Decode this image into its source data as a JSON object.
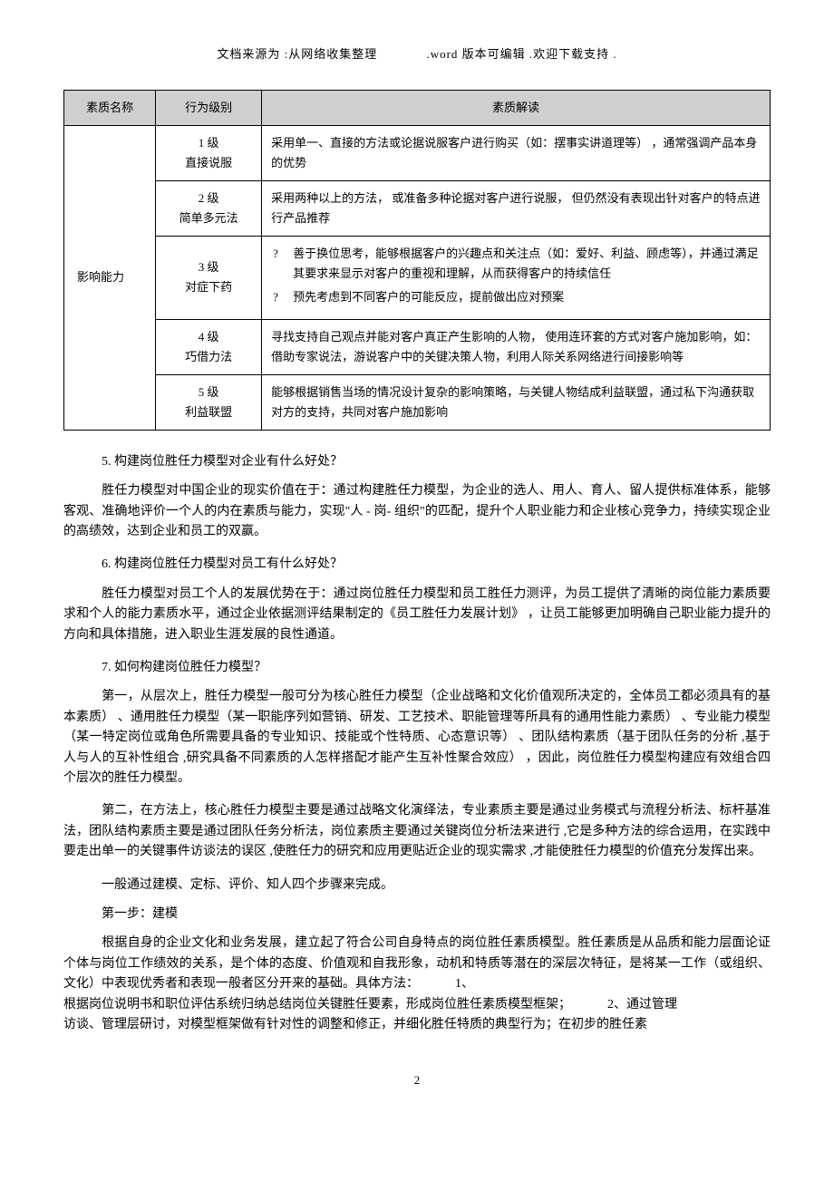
{
  "header": {
    "segment1": "文档来源为 :从网络收集整理",
    "segment2": ".word 版本可编辑  .欢迎下载支持  ."
  },
  "table": {
    "columns": [
      "素质名称",
      "行为级别",
      "素质解读"
    ],
    "col_widths": [
      "13%",
      "15%",
      "72%"
    ],
    "header_bg": "#d0cece",
    "border_color": "#000000",
    "name": "影响能力",
    "rows": [
      {
        "level_line1": "1 级",
        "level_line2": "直接说服",
        "desc_type": "text",
        "desc": "采用单一、直接的方法或论据说服客户进行购买（如：摆事实讲道理等）  ，通常强调产品本身的优势"
      },
      {
        "level_line1": "2 级",
        "level_line2": "简单多元法",
        "desc_type": "text",
        "desc": "采用两种以上的方法，  或准备多种论据对客户进行说服，  但仍然没有表现出针对客户的特点进行产品推荐"
      },
      {
        "level_line1": "3 级",
        "level_line2": "对症下药",
        "desc_type": "bullets",
        "bullets": [
          "善于换位思考，能够根据客户的兴趣点和关注点（如：爱好、利益、顾虑等），并通过满足其要求来显示对客户的重视和理解，从而获得客户的持续信任",
          "预先考虑到不同客户的可能反应，提前做出应对预案"
        ]
      },
      {
        "level_line1": "4 级",
        "level_line2": "巧借力法",
        "desc_type": "text",
        "desc": "寻找支持自己观点并能对客户真正产生影响的人物，  使用连环套的方式对客户施加影响，如：借助专家说法，游说客户中的关键决策人物，利用人际关系网络进行间接影响等"
      },
      {
        "level_line1": "5 级",
        "level_line2": "利益联盟",
        "desc_type": "text",
        "desc": "能够根据销售当场的情况设计复杂的影响策略，与关键人物结成利益联盟，通过私下沟通获取对方的支持，共同对客户施加影响"
      }
    ]
  },
  "sections": [
    {
      "heading": "5. 构建岗位胜任力模型对企业有什么好处？",
      "paragraphs": [
        "胜任力模型对中国企业的现实价值在于：通过构建胜任力模型，为企业的选人、用人、育人、留人提供标准体系，能够客观、准确地评价一个人的内在素质与能力，实现\"人 - 岗- 组织\"的匹配，提升个人职业能力和企业核心竞争力，持续实现企业的高绩效，达到企业和员工的双赢。"
      ]
    },
    {
      "heading": "6. 构建岗位胜任力模型对员工有什么好处？",
      "paragraphs": [
        "胜任力模型对员工个人的发展优势在于：通过岗位胜任力模型和员工胜任力测评，为员工提供了清晰的岗位能力素质要求和个人的能力素质水平，通过企业依据测评结果制定的《员工胜任力发展计划》  ，让员工能够更加明确自己职业能力提升的方向和具体措施，进入职业生涯发展的良性通道。"
      ]
    },
    {
      "heading": "7. 如何构建岗位胜任力模型？",
      "paragraphs": [
        "第一，从层次上，胜任力模型一般可分为核心胜任力模型（企业战略和文化价值观所决定的，全体员工都必须具有的基本素质）  、通用胜任力模型（某一职能序列如营销、研发、工艺技术、职能管理等所具有的通用性能力素质）  、专业能力模型（某一特定岗位或角色所需要具备的专业知识、技能或个性特质、心态意识等）  、团队结构素质（基于团队任务的分析 ,基于人与人的互补性组合 ,研究具备不同素质的人怎样搭配才能产生互补性聚合效应）  ，因此，岗位胜任力模型构建应有效组合四个层次的胜任力模型。",
        "第二，在方法上，核心胜任力模型主要是通过战略文化演绎法，专业素质主要是通过业务模式与流程分析法、标杆基准法，团队结构素质主要是通过团队任务分析法，岗位素质主要通过关键岗位分析法来进行 ,它是多种方法的综合运用，在实践中要走出单一的关键事件访谈法的误区 ,使胜任力的研究和应用更贴近企业的现实需求 ,才能使胜任力模型的价值充分发挥出来。"
      ],
      "plain_lines": [
        "一般通过建模、定标、评价、知人四个步骤来完成。",
        "第一步：建模"
      ],
      "tail_paragraph": {
        "text": "根据自身的企业文化和业务发展，建立起了符合公司自身特点的岗位胜任素质模型。胜任素质是从品质和能力层面论证个体与岗位工作绩效的关系，是个体的态度、价值观和自我形象，动机和特质等潜在的深层次特征，是将某一工作（或组织、文化）中表现优秀者和表现一般者区分开来的基础。具体方法：",
        "trail1": "1、",
        "line2": "根据岗位说明书和职位评估系统归纳总结岗位关键胜任要素，形成岗位胜任素质模型框架；",
        "trail2": "2、通过管理",
        "line3": "访谈、管理层研讨，对模型框架做有针对性的调整和修正，并细化胜任特质的典型行为；在初步的胜任素"
      }
    }
  ],
  "bullet_marker": "?",
  "page_number": "2"
}
